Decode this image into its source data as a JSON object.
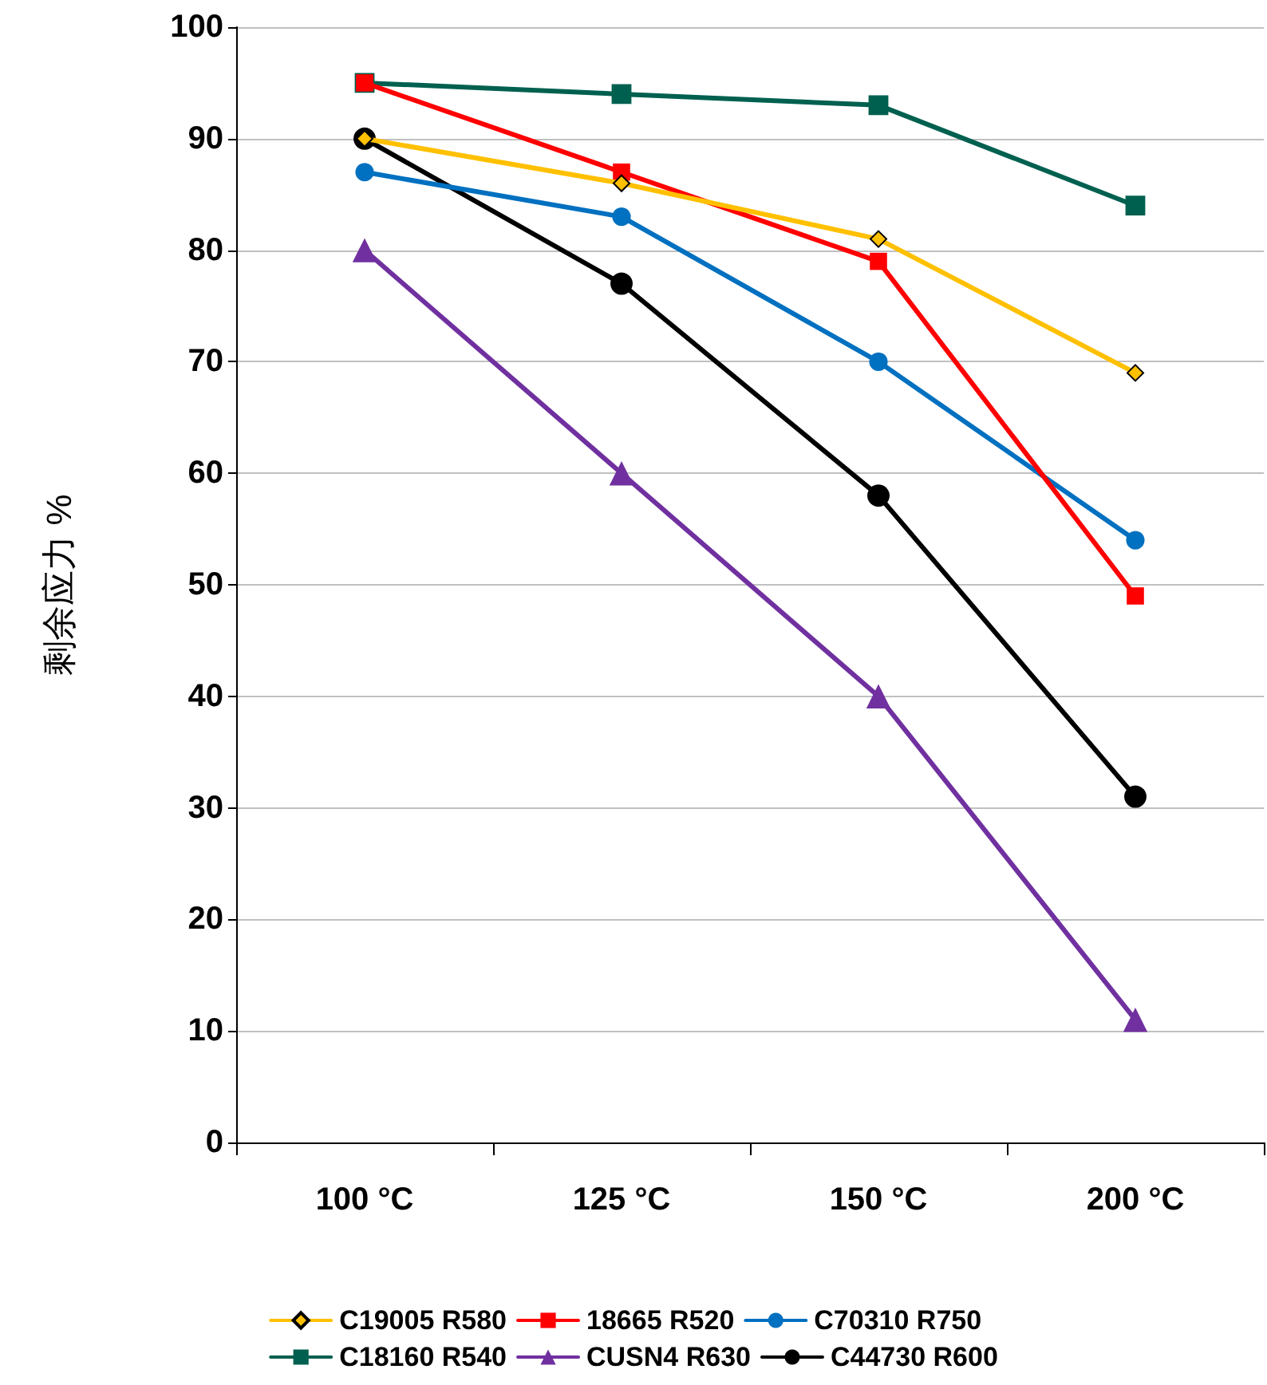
{
  "chart_data": {
    "type": "line",
    "ylabel": "剩余应力 %",
    "categories": [
      "100 °C",
      "125 °C",
      "150 °C",
      "200 °C"
    ],
    "ylim": [
      0,
      100
    ],
    "yticks": [
      0,
      10,
      20,
      30,
      40,
      50,
      60,
      70,
      80,
      90,
      100
    ],
    "grid": "y",
    "legend": "bottom",
    "series": [
      {
        "name": "C19005 R580",
        "color": "#ffc000",
        "marker": "diamond",
        "values": [
          90,
          86,
          81,
          69
        ]
      },
      {
        "name": "18665 R520",
        "color": "#ff0000",
        "marker": "square",
        "values": [
          95,
          87,
          79,
          49
        ]
      },
      {
        "name": "C70310 R750",
        "color": "#0070c0",
        "marker": "circle",
        "values": [
          87,
          83,
          70,
          54
        ]
      },
      {
        "name": "C18160 R540",
        "color": "#00604f",
        "marker": "square",
        "values": [
          95,
          94,
          93,
          84
        ]
      },
      {
        "name": "CUSN4 R630",
        "color": "#7030a0",
        "marker": "triangle",
        "values": [
          80,
          60,
          40,
          11
        ]
      },
      {
        "name": "C44730 R600",
        "color": "#000000",
        "marker": "circle",
        "values": [
          90,
          77,
          58,
          31
        ]
      }
    ]
  }
}
